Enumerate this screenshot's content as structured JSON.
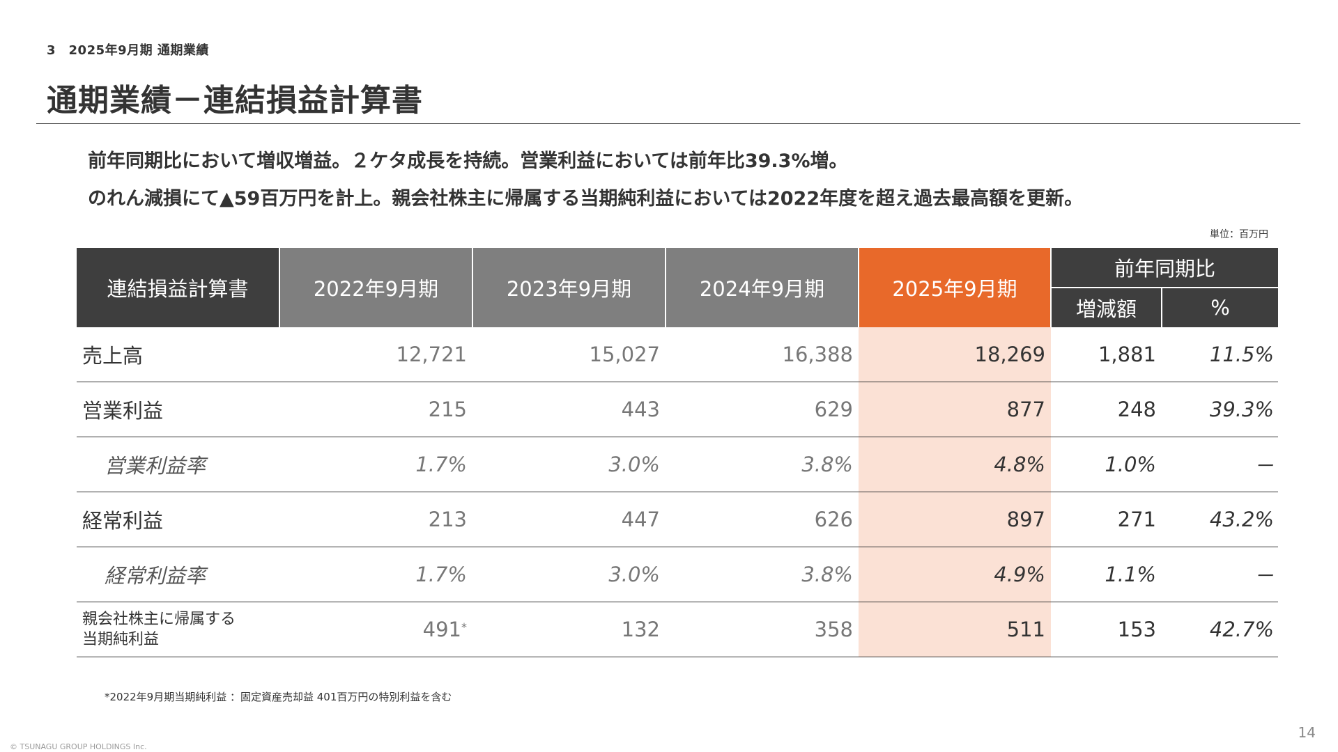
{
  "header": {
    "section": "3　2025年9月期 通期業績",
    "title": "通期業績－連結損益計算書"
  },
  "summary": {
    "line1": "前年同期比において増収増益。２ケタ成長を持続。営業利益においては前年比39.3%増。",
    "line2": "のれん減損にて▲59百万円を計上。親会社株主に帰属する当期純利益においては2022年度を超え過去最高額を更新。"
  },
  "unit": "単位：百万円",
  "table": {
    "columns": {
      "label": "連結損益計算書",
      "y2022": "2022年9月期",
      "y2023": "2023年9月期",
      "y2024": "2024年9月期",
      "y2025": "2025年9月期",
      "yoy": "前年同期比",
      "diff": "増減額",
      "pct": "%"
    },
    "rows": [
      {
        "label": "売上高",
        "y2022": "12,721",
        "y2023": "15,027",
        "y2024": "16,388",
        "y2025": "18,269",
        "diff": "1,881",
        "pct": "11.5%"
      },
      {
        "label": "営業利益",
        "y2022": "215",
        "y2023": "443",
        "y2024": "629",
        "y2025": "877",
        "diff": "248",
        "pct": "39.3%"
      },
      {
        "label": "営業利益率",
        "y2022": "1.7%",
        "y2023": "3.0%",
        "y2024": "3.8%",
        "y2025": "4.8%",
        "diff": "1.0%",
        "pct": "－"
      },
      {
        "label": "経常利益",
        "y2022": "213",
        "y2023": "447",
        "y2024": "626",
        "y2025": "897",
        "diff": "271",
        "pct": "43.2%"
      },
      {
        "label": "経常利益率",
        "y2022": "1.7%",
        "y2023": "3.0%",
        "y2024": "3.8%",
        "y2025": "4.9%",
        "diff": "1.1%",
        "pct": "－"
      },
      {
        "label_line1": "親会社株主に帰属する",
        "label_line2": "当期純利益",
        "y2022": "491",
        "y2022_mark": "*",
        "y2023": "132",
        "y2024": "358",
        "y2025": "511",
        "diff": "153",
        "pct": "42.7%"
      }
    ]
  },
  "footnote": "*2022年9月期当期純利益 ：固定資産売却益 401百万円の特別利益を含む",
  "page_number": "14",
  "copyright": "© TSUNAGU GROUP HOLDINGS Inc.",
  "colors": {
    "header_dark": "#3e3e3e",
    "header_gray": "#7f7f7f",
    "accent_orange": "#e8692a",
    "highlight_peach": "#fbe1d5"
  }
}
